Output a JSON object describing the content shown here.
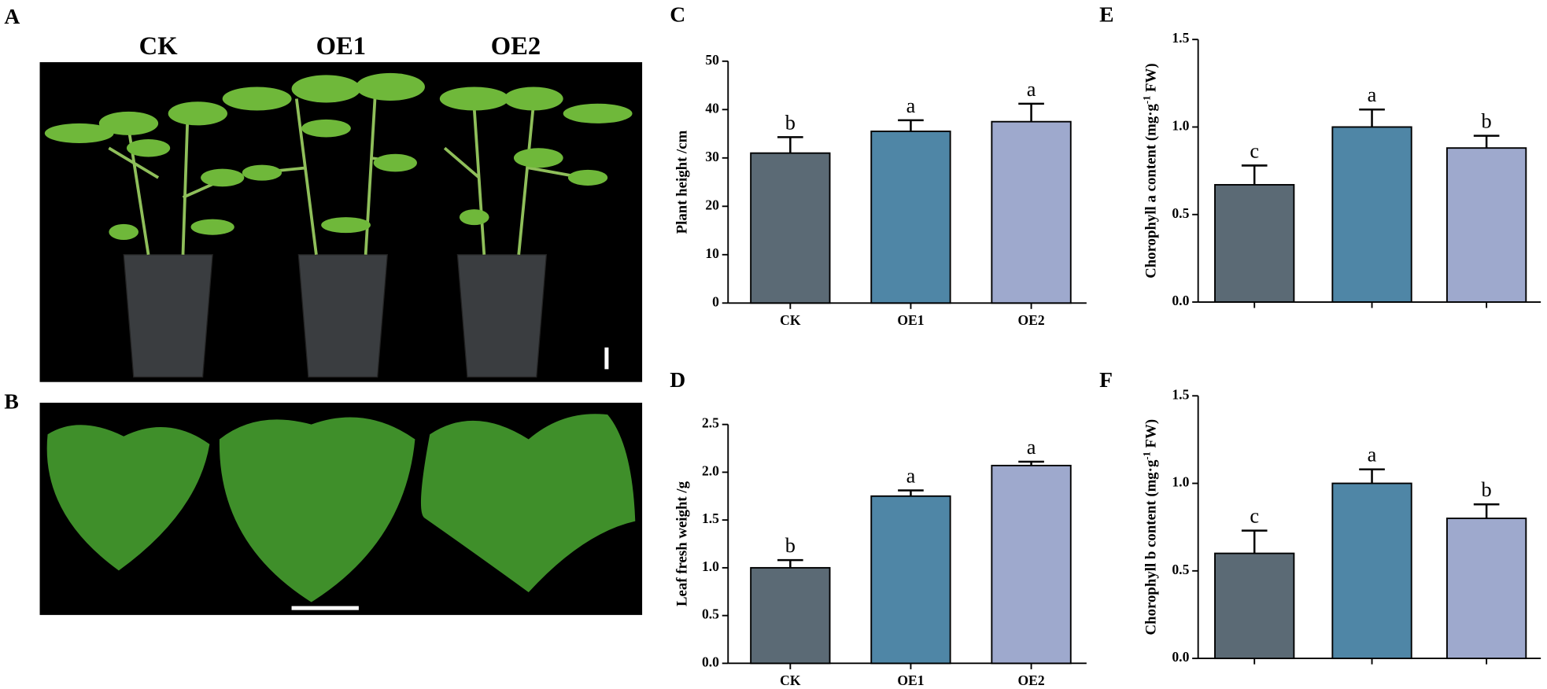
{
  "photo_panels": {
    "top_panel": "A",
    "bottom_panel": "B",
    "labels": [
      "CK",
      "OE1",
      "OE2"
    ]
  },
  "chart_data": [
    {
      "type": "bar",
      "panel": "C",
      "y_label": [
        "Plant height /cm"
      ],
      "categories": [
        "CK",
        "OE1",
        "OE2"
      ],
      "values": [
        31,
        35.5,
        37.5
      ],
      "errors": [
        3.3,
        2.3,
        3.7
      ],
      "annotations": [
        "b",
        "a",
        "a"
      ],
      "colors": [
        "#5b6a75",
        "#4f86a6",
        "#9ea9cd"
      ],
      "ylim": [
        0,
        50
      ],
      "yticks": [
        0,
        10,
        20,
        30,
        40,
        50
      ]
    },
    {
      "type": "bar",
      "panel": "D",
      "y_label": [
        "Leaf fresh weight /g"
      ],
      "categories": [
        "CK",
        "OE1",
        "OE2"
      ],
      "values": [
        1.0,
        1.75,
        2.07
      ],
      "errors": [
        0.08,
        0.06,
        0.04
      ],
      "annotations": [
        "b",
        "a",
        "a"
      ],
      "colors": [
        "#5b6a75",
        "#4f86a6",
        "#9ea9cd"
      ],
      "ylim": [
        0,
        2.5
      ],
      "yticks": [
        {
          "value": 0,
          "label": "0.0"
        },
        0.5,
        {
          "value": 1,
          "label": "1.0"
        },
        1.5,
        {
          "value": 2,
          "label": "2.0"
        },
        2.5
      ]
    },
    {
      "type": "bar",
      "panel": "E",
      "y_label": [
        "Chorophyll a content (mg·g",
        "-1",
        " FW)"
      ],
      "categories": [
        null,
        null,
        null
      ],
      "values": [
        0.67,
        1.0,
        0.88
      ],
      "errors": [
        0.11,
        0.1,
        0.07
      ],
      "annotations": [
        "c",
        "a",
        "b"
      ],
      "colors": [
        "#5b6a75",
        "#4f86a6",
        "#9ea9cd"
      ],
      "ylim": [
        0,
        1.5
      ],
      "yticks": [
        {
          "value": 0,
          "label": "0.0"
        },
        0.5,
        {
          "value": 1,
          "label": "1.0"
        },
        1.5
      ]
    },
    {
      "type": "bar",
      "panel": "F",
      "y_label": [
        "Chorophyll b content (mg·g",
        "-1",
        " FW)"
      ],
      "categories": [
        null,
        null,
        null
      ],
      "values": [
        0.6,
        1.0,
        0.8
      ],
      "errors": [
        0.13,
        0.08,
        0.08
      ],
      "annotations": [
        "c",
        "a",
        "b"
      ],
      "colors": [
        "#5b6a75",
        "#4f86a6",
        "#9ea9cd"
      ],
      "ylim": [
        0,
        1.5
      ],
      "yticks": [
        {
          "value": 0,
          "label": "0.0"
        },
        0.5,
        {
          "value": 1,
          "label": "1.0"
        },
        1.5
      ]
    }
  ]
}
